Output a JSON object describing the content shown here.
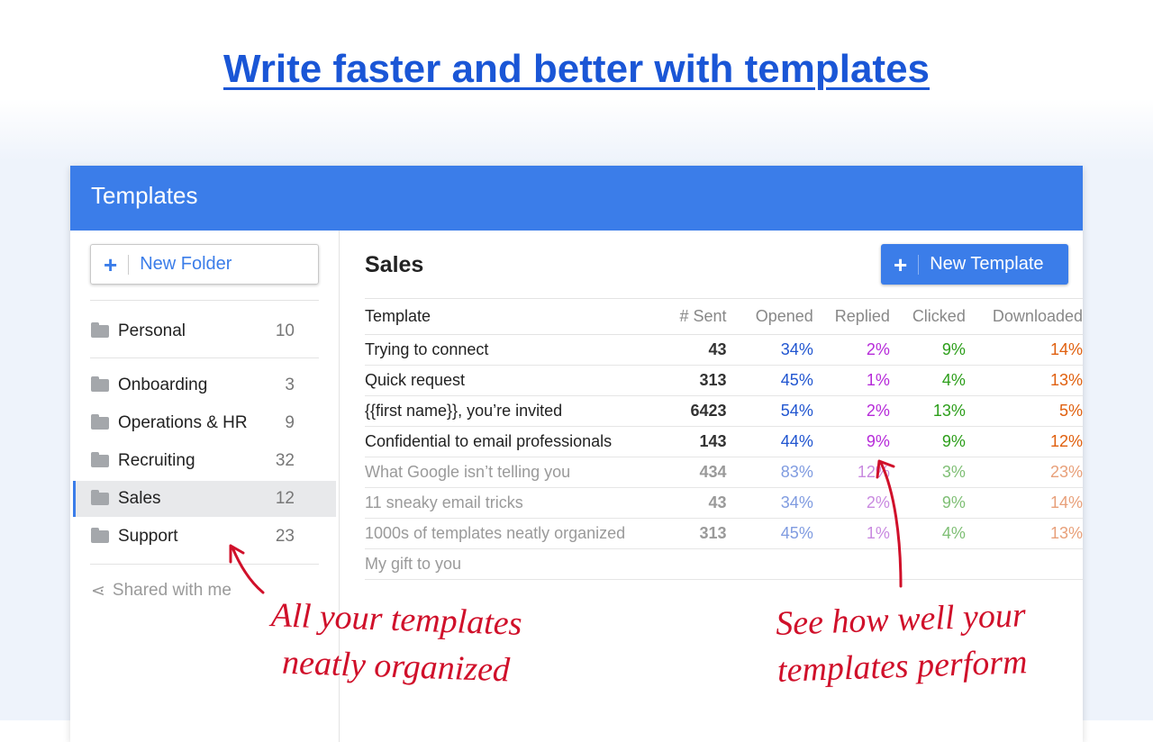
{
  "headline": "Write faster and better with templates",
  "app": {
    "title": "Templates"
  },
  "sidebar": {
    "new_folder": "New Folder",
    "items": [
      {
        "label": "Personal",
        "count": "10"
      },
      {
        "label": "Onboarding",
        "count": "3"
      },
      {
        "label": "Operations & HR",
        "count": "9"
      },
      {
        "label": "Recruiting",
        "count": "32"
      },
      {
        "label": "Sales",
        "count": "12",
        "selected": true
      },
      {
        "label": "Support",
        "count": "23"
      }
    ],
    "shared": "Shared with me"
  },
  "main": {
    "title": "Sales",
    "new_template": "New Template",
    "columns": [
      "Template",
      "# Sent",
      "Opened",
      "Replied",
      "Clicked",
      "Downloaded"
    ],
    "rows": [
      [
        "Trying to connect",
        "43",
        "34%",
        "2%",
        "9%",
        "14%"
      ],
      [
        "Quick request",
        "313",
        "45%",
        "1%",
        "4%",
        "13%"
      ],
      [
        "{{first name}}, you’re invited",
        "6423",
        "54%",
        "2%",
        "13%",
        "5%"
      ],
      [
        "Confidential to email professionals",
        "143",
        "44%",
        "9%",
        "9%",
        "12%"
      ],
      [
        "What Google isn’t telling you",
        "434",
        "83%",
        "12%",
        "3%",
        "23%"
      ],
      [
        "11 sneaky email tricks",
        "43",
        "34%",
        "2%",
        "9%",
        "14%"
      ],
      [
        "1000s of templates neatly organized",
        "313",
        "45%",
        "1%",
        "4%",
        "13%"
      ],
      [
        "My gift to you",
        "",
        "",
        "",
        "",
        ""
      ]
    ]
  },
  "annotations": {
    "left": [
      "All your templates",
      "neatly organized"
    ],
    "right": [
      "See how well your",
      "templates perform"
    ]
  },
  "colors": {
    "accent": "#3b7de9",
    "annotation": "#d0102a"
  }
}
